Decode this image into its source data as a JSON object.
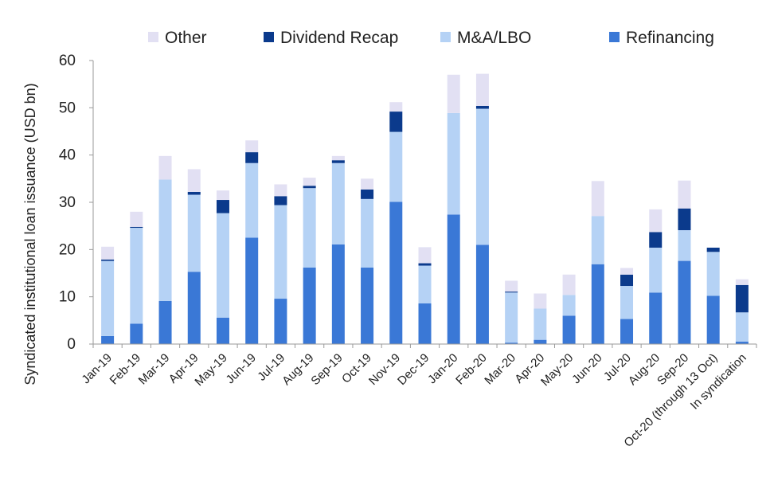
{
  "chart_data": {
    "type": "bar",
    "stacked": true,
    "title": "",
    "xlabel": "",
    "ylabel": "Syndicated institutional loan issuance (USD bn)",
    "ylim": [
      0,
      60
    ],
    "yticks": [
      0,
      10,
      20,
      30,
      40,
      50,
      60
    ],
    "grid": false,
    "legend_position": "top",
    "categories": [
      "Jan-19",
      "Feb-19",
      "Mar-19",
      "Apr-19",
      "May-19",
      "Jun-19",
      "Jul-19",
      "Aug-19",
      "Sep-19",
      "Oct-19",
      "Nov-19",
      "Dec-19",
      "Jan-20",
      "Feb-20",
      "Mar-20",
      "Apr-20",
      "May-20",
      "Jun-20",
      "Jul-20",
      "Aug-20",
      "Sep-20",
      "Oct-20 (through 13 Oct)",
      "In syndication"
    ],
    "series": [
      {
        "name": "Refinancing",
        "color": "#3a78d6",
        "values": [
          1.7,
          4.3,
          9.1,
          15.3,
          5.6,
          22.5,
          9.6,
          16.2,
          21.1,
          16.2,
          30.1,
          8.6,
          27.4,
          21.0,
          0.3,
          0.9,
          6.0,
          16.9,
          5.3,
          10.9,
          17.6,
          10.2,
          0.5
        ]
      },
      {
        "name": "M&A/LBO",
        "color": "#b5d2f5",
        "values": [
          15.9,
          20.3,
          25.7,
          16.3,
          22.1,
          15.8,
          19.8,
          16.8,
          17.2,
          14.5,
          14.8,
          8.0,
          21.5,
          28.8,
          10.6,
          6.6,
          4.4,
          10.2,
          7.0,
          9.5,
          6.5,
          9.3,
          6.2
        ]
      },
      {
        "name": "Dividend Recap",
        "color": "#0b3a8c",
        "values": [
          0.3,
          0.2,
          0.0,
          0.6,
          2.8,
          2.3,
          1.9,
          0.5,
          0.6,
          2.0,
          4.3,
          0.5,
          0.0,
          0.6,
          0.2,
          0.0,
          0.0,
          0.0,
          2.4,
          3.3,
          4.6,
          0.9,
          5.8
        ]
      },
      {
        "name": "Other",
        "color": "#e2e0f3",
        "values": [
          2.7,
          3.2,
          5.0,
          4.8,
          2.0,
          2.5,
          2.5,
          1.7,
          0.9,
          2.3,
          2.0,
          3.4,
          8.1,
          6.8,
          2.3,
          3.2,
          4.3,
          7.4,
          1.4,
          4.8,
          5.9,
          0.0,
          1.2
        ]
      }
    ],
    "legend_order": [
      "Other",
      "Dividend Recap",
      "M&A/LBO",
      "Refinancing"
    ]
  }
}
